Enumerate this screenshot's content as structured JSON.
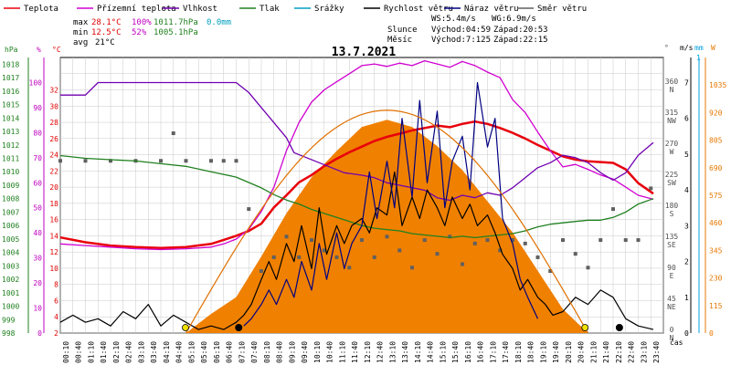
{
  "chart_data": {
    "type": "line",
    "title": "13.7.2021",
    "legend": [
      {
        "label": "Teplota",
        "color": "#e8000b"
      },
      {
        "label": "Přízemní teplota",
        "color": "#d000d0"
      },
      {
        "label": "Vlhkost",
        "color": "#7000b0"
      },
      {
        "label": "Tlak",
        "color": "#208020"
      },
      {
        "label": "Srážky",
        "color": "#00a0c0"
      },
      {
        "label": "Rychlost větru",
        "color": "#000000"
      },
      {
        "label": "Náraz větru",
        "color": "#000080"
      },
      {
        "label": "Směr větru",
        "color": "#606060"
      }
    ],
    "stats": {
      "max": {
        "label": "max",
        "temp": "28.1°C",
        "hum": "100%",
        "press": "1011.7hPa",
        "rain": "0.0mm"
      },
      "min": {
        "label": "min",
        "temp": "12.5°C",
        "hum": "52%",
        "press": "1005.1hPa"
      },
      "avg": {
        "label": "avg",
        "temp": "21°C"
      },
      "wind": {
        "ws": "WS:5.4m/s",
        "wg": "WG:6.9m/s"
      },
      "sun": {
        "label": "Slunce",
        "rise": "Východ:04:59",
        "set": "Západ:20:53"
      },
      "moon": {
        "label": "Měsíc",
        "rise": "Východ:7:125",
        "set": "Západ:22:15"
      }
    },
    "axes": {
      "hpa": {
        "unit": "hPa",
        "color": "#208020",
        "ticks": [
          "998",
          "999",
          "1000",
          "1001",
          "1002",
          "1003",
          "1004",
          "1005",
          "1006",
          "1007",
          "1008",
          "1009",
          "1010",
          "1011",
          "1012",
          "1013",
          "1014",
          "1015",
          "1016",
          "1017",
          "1018"
        ]
      },
      "percent": {
        "unit": "%",
        "color": "#c000c0",
        "ticks": [
          "0",
          "10",
          "20",
          "30",
          "40",
          "50",
          "60",
          "70",
          "80",
          "90",
          "100"
        ]
      },
      "celsius": {
        "unit": "°C",
        "color": "#e00000",
        "ticks": [
          "2",
          "4",
          "6",
          "8",
          "10",
          "12",
          "14",
          "16",
          "18",
          "20",
          "22",
          "24",
          "26",
          "28",
          "30",
          "32"
        ]
      },
      "direction": {
        "unit": "°",
        "ticks": [
          {
            "deg": "0",
            "dir": "N"
          },
          {
            "deg": "45",
            "dir": "NE"
          },
          {
            "deg": "90",
            "dir": "E"
          },
          {
            "deg": "135",
            "dir": "SE"
          },
          {
            "deg": "180",
            "dir": "S"
          },
          {
            "deg": "225",
            "dir": "SW"
          },
          {
            "deg": "270",
            "dir": "W"
          },
          {
            "deg": "315",
            "dir": "NW"
          },
          {
            "deg": "360",
            "dir": "N"
          }
        ]
      },
      "wind": {
        "unit": "m/s",
        "ticks": [
          "0",
          "1",
          "2",
          "3",
          "4",
          "5",
          "6",
          "7"
        ]
      },
      "rain": {
        "unit": "mm",
        "top": "1",
        "color": "#00a0e0"
      },
      "solar": {
        "unit": "W",
        "color": "#e87800",
        "ticks": [
          "0",
          "115",
          "230",
          "345",
          "460",
          "575",
          "690",
          "805",
          "920",
          "1035"
        ]
      },
      "time": {
        "label": "čas",
        "ticks": [
          "00:10",
          "00:40",
          "01:10",
          "01:40",
          "02:10",
          "02:40",
          "03:10",
          "03:40",
          "04:10",
          "04:40",
          "05:10",
          "05:40",
          "06:10",
          "06:40",
          "07:10",
          "07:40",
          "08:10",
          "08:40",
          "09:10",
          "09:40",
          "10:10",
          "10:40",
          "11:10",
          "11:40",
          "12:10",
          "12:40",
          "13:10",
          "13:40",
          "14:10",
          "14:40",
          "15:10",
          "15:40",
          "16:10",
          "16:40",
          "17:10",
          "17:40",
          "18:10",
          "18:40",
          "19:10",
          "19:40",
          "20:10",
          "20:40",
          "21:10",
          "21:40",
          "22:10",
          "22:40",
          "23:10",
          "23:40"
        ]
      }
    },
    "series": [
      {
        "name": "Teplota",
        "color": "#e8000b",
        "axis": "celsius",
        "x": [
          0,
          1,
          2,
          3,
          4,
          5,
          6,
          6.5,
          7,
          7.5,
          8,
          8.5,
          9,
          9.5,
          10,
          10.5,
          11,
          11.5,
          12,
          12.5,
          13,
          13.5,
          14,
          14.5,
          15,
          15.5,
          16,
          16.5,
          17,
          17.5,
          18,
          18.5,
          19,
          19.5,
          20,
          20.5,
          21,
          21.5,
          22,
          22.5,
          23,
          23.6
        ],
        "y": [
          13.8,
          13.2,
          12.8,
          12.6,
          12.5,
          12.6,
          13.0,
          13.5,
          14.0,
          14.6,
          15.5,
          17.5,
          19.0,
          20.6,
          21.5,
          22.6,
          23.5,
          24.3,
          25.0,
          25.7,
          26.2,
          26.6,
          27.0,
          27.3,
          27.6,
          27.4,
          27.8,
          28.1,
          27.8,
          27.3,
          26.7,
          26.0,
          25.2,
          24.5,
          23.8,
          23.4,
          23.2,
          23.1,
          23.0,
          22.2,
          20.5,
          19.2
        ]
      },
      {
        "name": "Přízemní teplota",
        "color": "#d000d0",
        "axis": "celsius",
        "x": [
          0,
          1,
          2,
          3,
          4,
          5,
          6,
          6.5,
          7,
          7.5,
          8,
          8.5,
          9,
          9.5,
          10,
          10.5,
          11,
          11.5,
          12,
          12.5,
          13,
          13.5,
          14,
          14.5,
          15,
          15.5,
          16,
          16.5,
          17,
          17.5,
          18,
          18.5,
          19,
          19.5,
          20,
          20.5,
          21,
          21.5,
          22,
          22.5,
          23,
          23.6
        ],
        "y": [
          13.0,
          12.8,
          12.6,
          12.4,
          12.3,
          12.4,
          12.6,
          13.0,
          13.6,
          14.8,
          17.0,
          20.0,
          24.5,
          28.0,
          30.5,
          32.0,
          33.0,
          34.0,
          35.0,
          35.2,
          34.9,
          35.3,
          35.0,
          35.6,
          35.2,
          34.8,
          35.5,
          35.0,
          34.2,
          33.5,
          30.8,
          29.2,
          26.8,
          24.5,
          22.5,
          22.8,
          22.2,
          21.5,
          21.0,
          20.0,
          19.0,
          18.5
        ]
      },
      {
        "name": "Vlhkost",
        "color": "#7000b0",
        "axis": "percent",
        "x": [
          0,
          1,
          1.5,
          2,
          4,
          6,
          7.0,
          7.5,
          8,
          8.5,
          9,
          9.3,
          9.8,
          10.3,
          10.8,
          11.3,
          12,
          12.5,
          13,
          13.5,
          14,
          14.5,
          15,
          15.5,
          16,
          16.5,
          17,
          17.5,
          18,
          18.5,
          19,
          19.5,
          20,
          20.5,
          21,
          21.5,
          22,
          22.5,
          23,
          23.6
        ],
        "y": [
          95,
          95,
          100,
          100,
          100,
          100,
          100,
          96,
          90,
          84,
          78,
          72,
          70,
          68,
          66,
          64,
          63,
          62,
          60,
          59,
          58,
          57,
          54,
          53,
          55,
          54,
          56,
          55,
          58,
          62,
          66,
          68,
          71,
          70,
          68,
          64,
          61,
          64,
          71,
          76
        ]
      },
      {
        "name": "Tlak",
        "color": "#208020",
        "axis": "hpa",
        "x": [
          0,
          1,
          2,
          3,
          4,
          5,
          6,
          7,
          7.5,
          8,
          8.5,
          9,
          9.5,
          10,
          10.5,
          11,
          11.5,
          12,
          12.5,
          13,
          13.5,
          14,
          14.5,
          15,
          15.5,
          16,
          16.5,
          17,
          17.5,
          18,
          18.5,
          19,
          19.5,
          20,
          20.5,
          21,
          21.5,
          22,
          22.5,
          23,
          23.6
        ],
        "y": [
          1011.2,
          1011.0,
          1010.9,
          1010.8,
          1010.6,
          1010.4,
          1010.0,
          1009.6,
          1009.2,
          1008.8,
          1008.3,
          1007.9,
          1007.6,
          1007.2,
          1006.9,
          1006.6,
          1006.3,
          1006.0,
          1005.8,
          1005.7,
          1005.6,
          1005.4,
          1005.3,
          1005.2,
          1005.1,
          1005.2,
          1005.1,
          1005.2,
          1005.3,
          1005.4,
          1005.6,
          1005.9,
          1006.1,
          1006.2,
          1006.3,
          1006.4,
          1006.4,
          1006.6,
          1007.0,
          1007.6,
          1008.0
        ]
      },
      {
        "name": "Rychlost větru",
        "color": "#000000",
        "axis": "wind",
        "x": [
          0,
          0.5,
          1,
          1.5,
          2,
          2.5,
          3,
          3.5,
          4,
          4.5,
          5,
          5.5,
          6,
          6.5,
          7,
          7.3,
          7.6,
          8,
          8.3,
          8.6,
          9,
          9.3,
          9.6,
          10,
          10.3,
          10.6,
          11,
          11.3,
          11.6,
          12,
          12.3,
          12.6,
          13,
          13.3,
          13.6,
          14,
          14.3,
          14.6,
          15,
          15.3,
          15.6,
          16,
          16.3,
          16.6,
          17,
          17.3,
          17.6,
          18,
          18.3,
          18.6,
          19,
          19.3,
          19.6,
          20,
          20.5,
          21,
          21.5,
          22,
          22.5,
          23,
          23.6
        ],
        "y": [
          0.3,
          0.5,
          0.3,
          0.4,
          0.2,
          0.6,
          0.4,
          0.8,
          0.2,
          0.5,
          0.3,
          0.1,
          0.2,
          0.1,
          0.3,
          0.5,
          0.8,
          1.5,
          2.0,
          1.5,
          2.5,
          2.0,
          3.0,
          1.8,
          3.5,
          2.2,
          3.0,
          2.5,
          3.0,
          3.2,
          2.8,
          3.5,
          3.3,
          4.5,
          3.0,
          3.8,
          3.2,
          4.0,
          3.5,
          3.0,
          3.8,
          3.2,
          3.6,
          3.0,
          3.3,
          2.8,
          2.2,
          1.8,
          1.2,
          1.5,
          1.0,
          0.8,
          0.5,
          0.6,
          1.0,
          0.8,
          1.2,
          1.0,
          0.4,
          0.2,
          0.1
        ]
      },
      {
        "name": "Náraz větru",
        "color": "#000080",
        "axis": "wind",
        "x": [
          7.3,
          7.6,
          8,
          8.3,
          8.6,
          9,
          9.3,
          9.6,
          10,
          10.3,
          10.6,
          11,
          11.3,
          11.6,
          12,
          12.3,
          12.6,
          13,
          13.3,
          13.6,
          14,
          14.3,
          14.6,
          15,
          15.3,
          15.6,
          16,
          16.3,
          16.6,
          17,
          17.3,
          17.6,
          18,
          18.3,
          18.6,
          19
        ],
        "y": [
          0.2,
          0.4,
          0.8,
          1.2,
          0.8,
          1.5,
          1.0,
          2.0,
          1.2,
          2.5,
          1.5,
          2.8,
          1.8,
          2.5,
          3.0,
          4.5,
          3.2,
          4.8,
          3.5,
          6.0,
          3.8,
          6.5,
          4.2,
          6.2,
          3.5,
          4.8,
          5.5,
          4.0,
          7.0,
          5.2,
          6.0,
          3.2,
          2.5,
          1.5,
          1.0,
          0.4
        ]
      },
      {
        "name": "Směr větru",
        "color": "#606060",
        "axis": "direction",
        "x": [
          0,
          1,
          2,
          3,
          4,
          4.5,
          5,
          6,
          6.5,
          7,
          7.5,
          8,
          8.5,
          9,
          9.5,
          10,
          10.5,
          11,
          11.5,
          12,
          12.5,
          13,
          13.5,
          14,
          14.5,
          15,
          15.5,
          16,
          16.5,
          17,
          17.5,
          18,
          18.5,
          19,
          19.5,
          20,
          20.5,
          21,
          21.5,
          22,
          22.5,
          23,
          23.5
        ],
        "y": [
          250,
          250,
          250,
          250,
          250,
          290,
          250,
          250,
          250,
          250,
          180,
          90,
          110,
          140,
          110,
          135,
          120,
          110,
          95,
          135,
          110,
          140,
          120,
          95,
          135,
          115,
          140,
          100,
          130,
          135,
          120,
          135,
          130,
          110,
          90,
          135,
          115,
          95,
          135,
          180,
          135,
          135,
          210
        ]
      },
      {
        "name": "Solar",
        "color": "#f08000",
        "axis": "solar",
        "x": [
          5.0,
          6.0,
          7.0,
          8.0,
          9.0,
          10.0,
          11.0,
          12.0,
          13.0,
          14.0,
          15.0,
          16.0,
          17.0,
          18.0,
          19.0,
          20.0,
          21.0
        ],
        "y": [
          0,
          80,
          150,
          320,
          500,
          650,
          760,
          860,
          890,
          860,
          780,
          680,
          550,
          420,
          260,
          100,
          0
        ]
      }
    ]
  }
}
